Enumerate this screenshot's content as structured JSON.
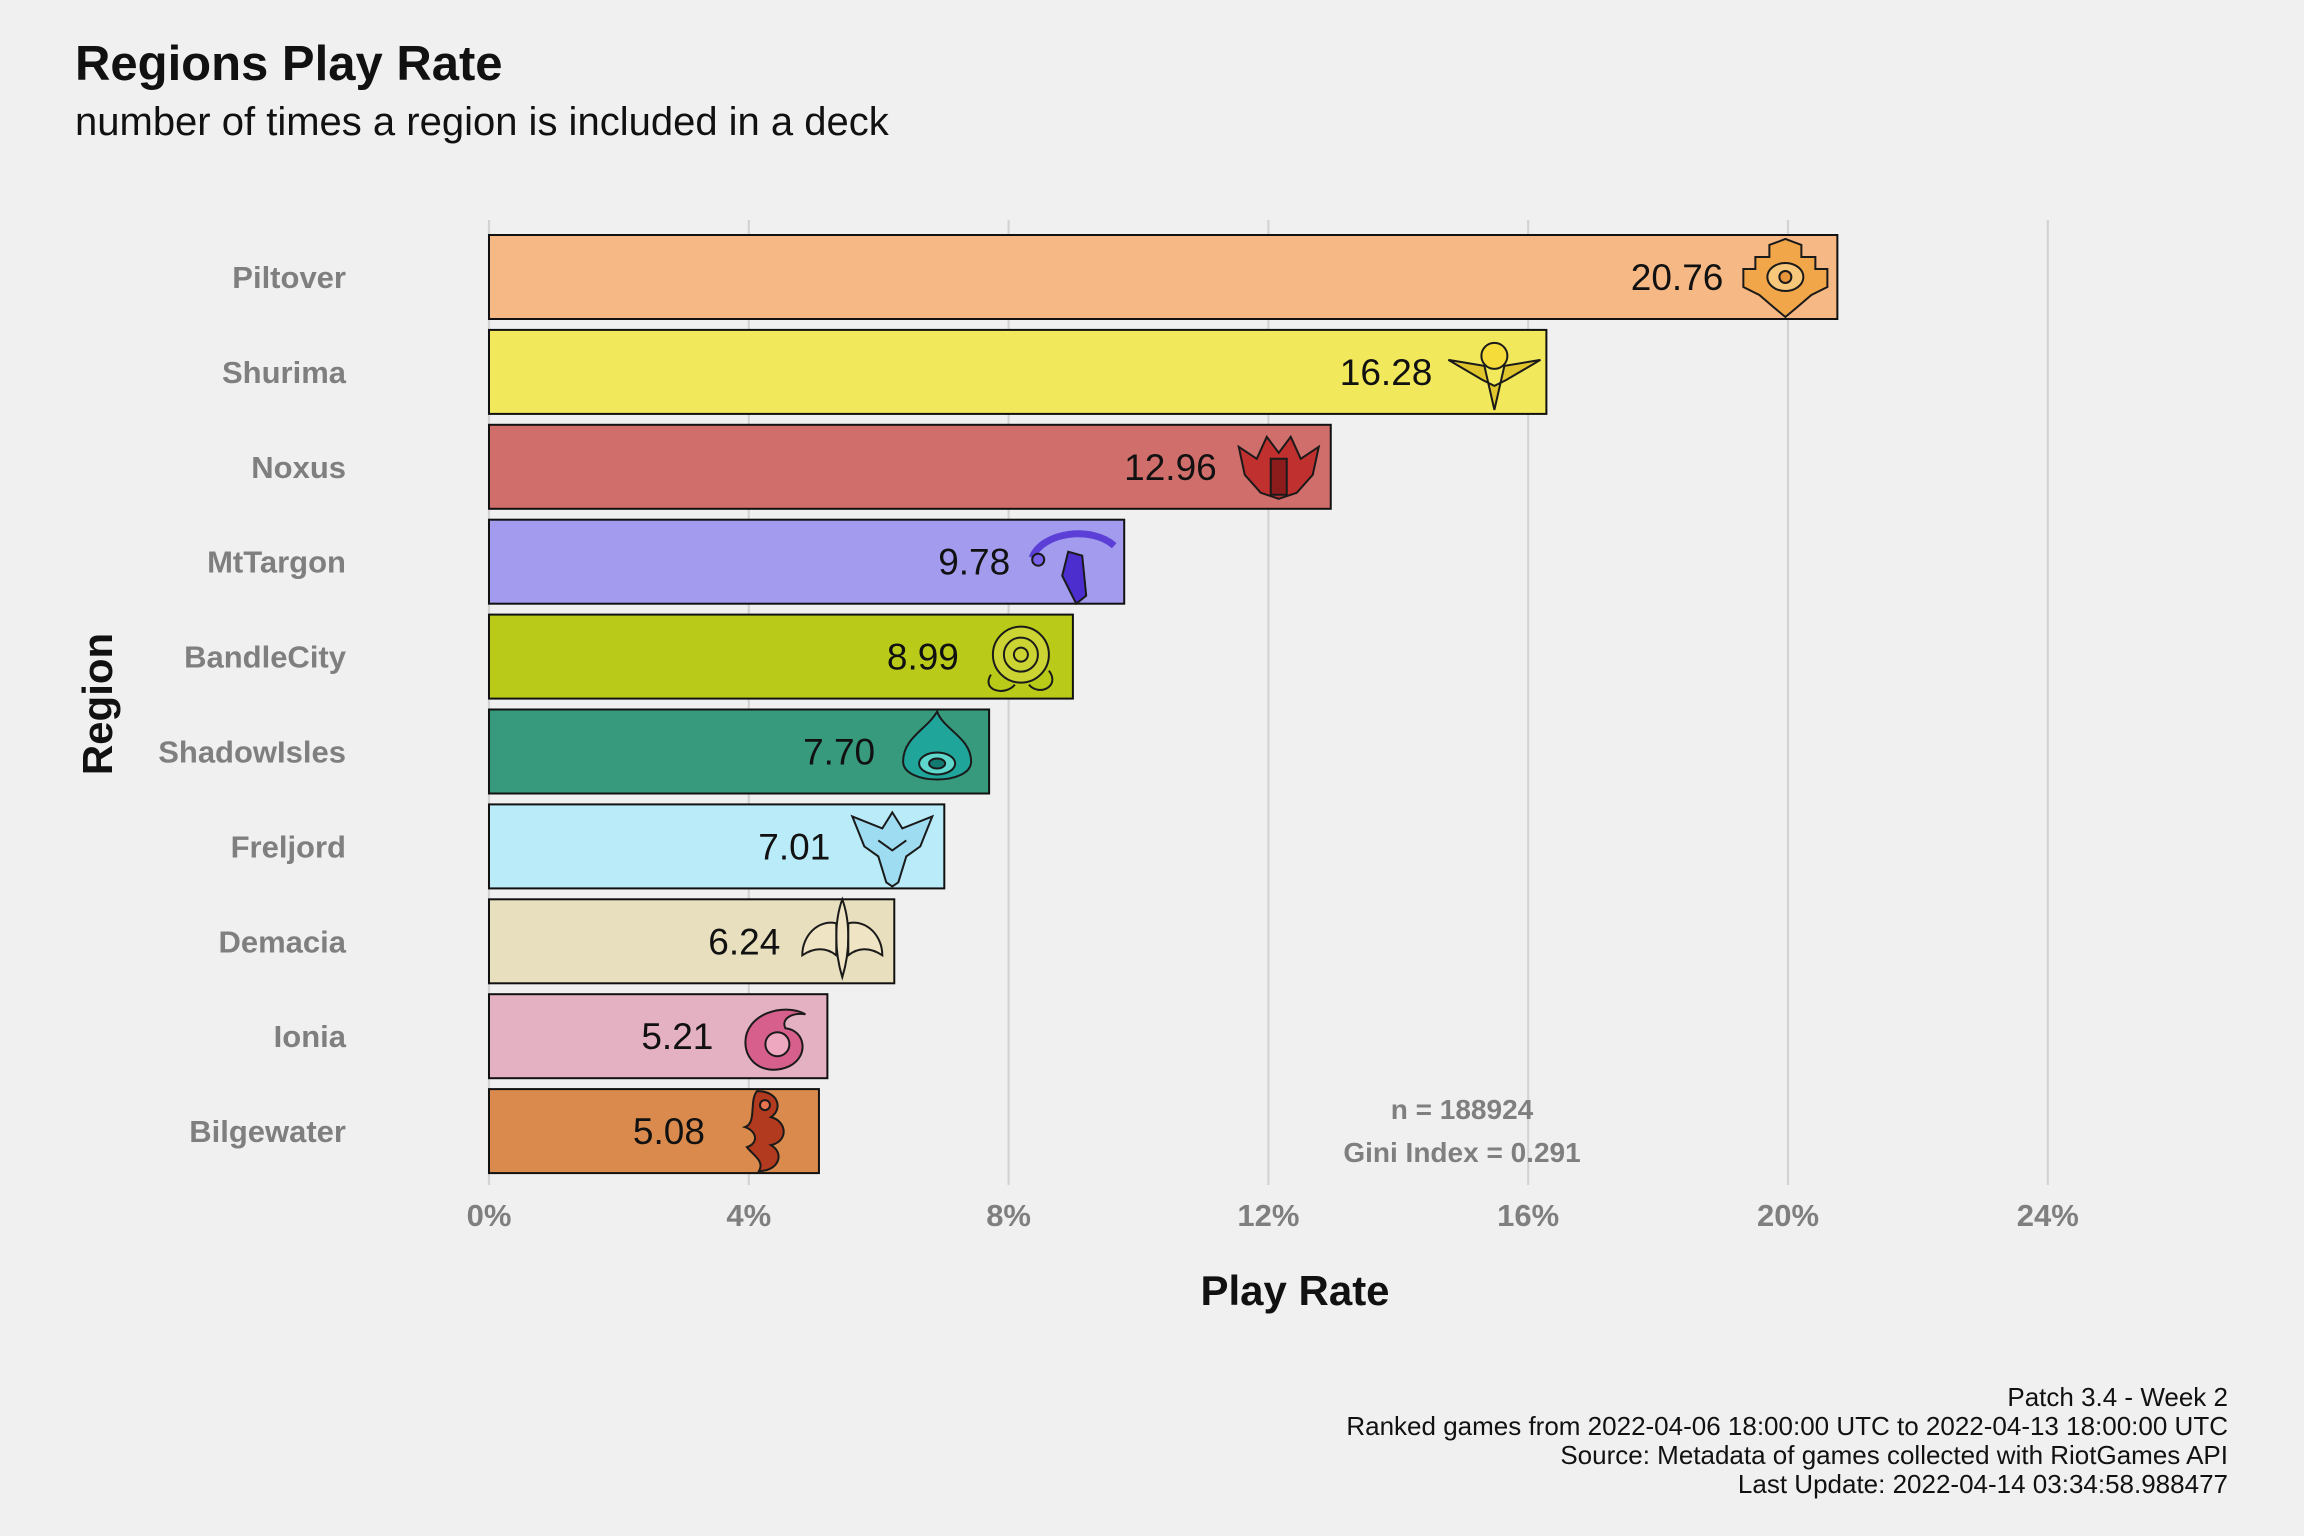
{
  "chart_data": {
    "type": "bar",
    "orientation": "horizontal",
    "title": "Regions Play Rate",
    "subtitle": "number of times a region is included in a deck",
    "xlabel": "Play Rate",
    "ylabel": "Region",
    "xlim": [
      0,
      24
    ],
    "xticks": [
      "0%",
      "4%",
      "8%",
      "12%",
      "16%",
      "20%",
      "24%"
    ],
    "grid": "vertical major gridlines",
    "categories": [
      "Piltover",
      "Shurima",
      "Noxus",
      "MtTargon",
      "BandleCity",
      "ShadowIsles",
      "Freljord",
      "Demacia",
      "Ionia",
      "Bilgewater"
    ],
    "values": [
      20.76,
      16.28,
      12.96,
      9.78,
      8.99,
      7.7,
      7.01,
      6.24,
      5.21,
      5.08
    ],
    "value_labels": [
      "20.76",
      "16.28",
      "12.96",
      "9.78",
      "8.99",
      "7.70",
      "7.01",
      "6.24",
      "5.21",
      "5.08"
    ],
    "colors": [
      "#f6b884",
      "#f2e85b",
      "#d06e6b",
      "#a39cee",
      "#b9cb18",
      "#379a7d",
      "#b9ebf8",
      "#e8dfbe",
      "#e3b1c1",
      "#d98a4c"
    ],
    "icons": [
      "piltover-icon",
      "shurima-icon",
      "noxus-icon",
      "mttargon-icon",
      "bandlecity-icon",
      "shadowisles-icon",
      "freljord-icon",
      "demacia-icon",
      "ionia-icon",
      "bilgewater-icon"
    ],
    "annotations": [
      "n = 188924",
      "Gini Index = 0.291"
    ]
  },
  "caption": [
    "Patch 3.4 - Week 2",
    "Ranked games from 2022-04-06 18:00:00 UTC to 2022-04-13 18:00:00 UTC",
    "Source: Metadata of games collected with RiotGames API",
    "Last Update: 2022-04-14 03:34:58.988477"
  ]
}
